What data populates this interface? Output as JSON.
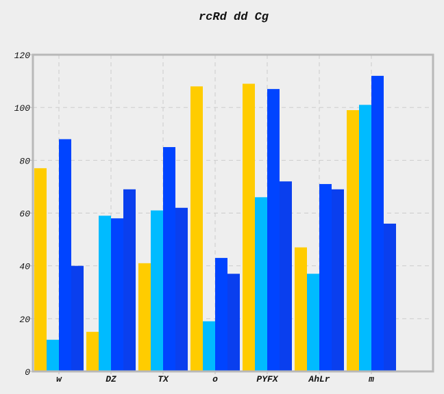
{
  "chart_data": {
    "type": "bar",
    "title": "rcRd   dd Cg",
    "xlabel": "",
    "ylabel": "",
    "categories": [
      "w",
      "DZ",
      "TX",
      "o",
      "PYFX",
      "AhLr",
      "m"
    ],
    "series": [
      {
        "values": [
          77,
          15,
          41,
          108,
          109,
          47,
          99
        ],
        "color": "#ffcc00"
      },
      {
        "values": [
          12,
          59,
          61,
          19,
          66,
          37,
          101
        ],
        "color": "#00bbff"
      },
      {
        "values": [
          88,
          58,
          85,
          43,
          107,
          71,
          112
        ],
        "color": "#0044ff"
      },
      {
        "values": [
          40,
          69,
          62,
          37,
          72,
          69,
          56
        ],
        "color": "#0a3fee"
      }
    ],
    "ylim": [
      0,
      120
    ],
    "yticks": [
      0,
      20,
      40,
      60,
      80,
      100,
      120
    ],
    "grid": true,
    "legend": "none"
  },
  "colors": {
    "background": "#eeeeee",
    "frame": "#b8b8b8",
    "grid": "#cccccc"
  }
}
